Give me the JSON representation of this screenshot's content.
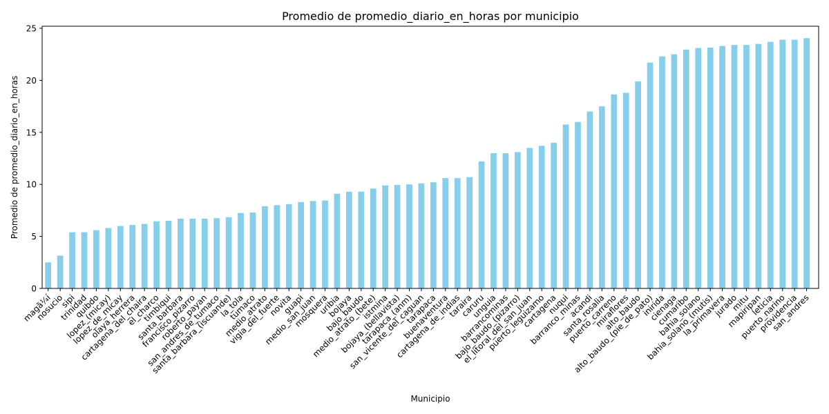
{
  "chart_data": {
    "type": "bar",
    "title": "Promedio de promedio_diario_en_horas por municipio",
    "xlabel": "Municipio",
    "ylabel": "Promedio de promedio_diario_en_horas",
    "ylim": [
      0,
      25.2
    ],
    "yticks": [
      0,
      5,
      10,
      15,
      20,
      25
    ],
    "grid": false,
    "bar_color": "#87ceeb",
    "categories": [
      "magã¼í",
      "nosucio",
      "sipi",
      "trinidad",
      "quibdo",
      "lopez_(micay)",
      "lopez_de_micay",
      "olaya_herrera",
      "cartagena_del_chaira",
      "el_charco",
      "timbiqui",
      "santa_barbara",
      "francisco_pizarro",
      "roberto_payan",
      "san_andres_de_tumaco",
      "santa_barbara_(iscuande)",
      "la_tola",
      "tumaco",
      "medio_atrato",
      "vigia_del_fuerte",
      "novita",
      "guapi",
      "medio_san_juan",
      "mosquera",
      "uribia",
      "bojaya",
      "bajo_baudo",
      "medio_atrato_(bete)",
      "istmina",
      "bojaya_(bellavista)",
      "tarapaca_(anm)",
      "san_vicente_del_caguan",
      "tarapaca",
      "buenaventura",
      "cartagena_de_indias",
      "taraira",
      "caruru",
      "unguia",
      "barrancominas",
      "bajo_baudo_(pizarro)",
      "el_litoral_del_san_juan",
      "puerto_leguizamo",
      "cartagena",
      "nuqui",
      "barranco_minas",
      "acandi",
      "santa_rosalia",
      "puerto_carreno",
      "miraflores",
      "alto_baudo",
      "alto_baudo_(pie_de_pato)",
      "inirida",
      "cienaga",
      "cumaribo",
      "bahia_solano",
      "bahia_solano_(mutis)",
      "la_primavera",
      "jurado",
      "mitu",
      "mapiripan",
      "leticia",
      "puerto_narino",
      "providencia",
      "san_andres"
    ],
    "values": [
      2.5,
      3.15,
      5.4,
      5.4,
      5.6,
      5.8,
      6.0,
      6.1,
      6.2,
      6.45,
      6.5,
      6.7,
      6.7,
      6.7,
      6.75,
      6.85,
      7.25,
      7.3,
      7.9,
      8.0,
      8.1,
      8.3,
      8.4,
      8.45,
      9.1,
      9.3,
      9.3,
      9.6,
      9.9,
      9.95,
      10.0,
      10.1,
      10.2,
      10.6,
      10.6,
      10.7,
      12.2,
      13.0,
      13.0,
      13.1,
      13.5,
      13.7,
      14.0,
      15.75,
      16.0,
      17.0,
      17.5,
      18.65,
      18.8,
      19.9,
      21.7,
      22.3,
      22.5,
      22.95,
      23.1,
      23.15,
      23.3,
      23.4,
      23.4,
      23.5,
      23.7,
      23.9,
      23.9,
      24.05
    ]
  }
}
